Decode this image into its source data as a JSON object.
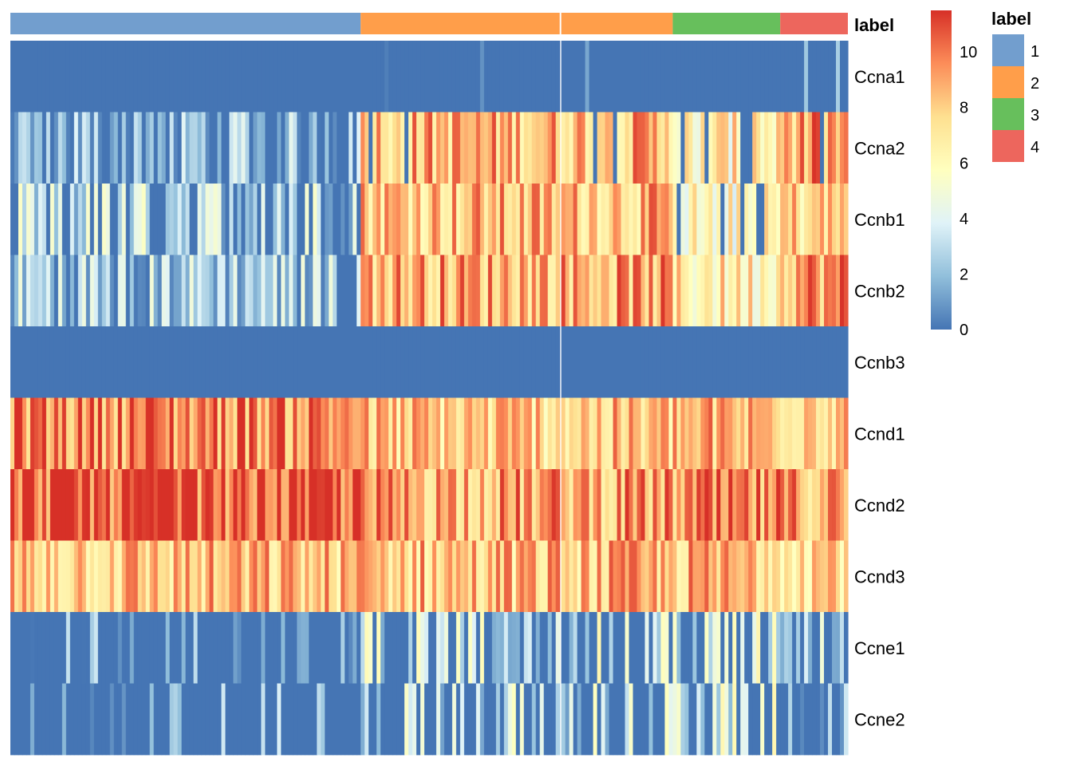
{
  "chart_data": {
    "type": "heatmap",
    "title": "",
    "rows": [
      "Ccna1",
      "Ccna2",
      "Ccnb1",
      "Ccnb2",
      "Ccnb3",
      "Ccnd1",
      "Ccnd2",
      "Ccnd3",
      "Ccne1",
      "Ccne2"
    ],
    "n_columns": 210,
    "column_split_after": 138,
    "column_annotation": {
      "name": "label",
      "groups": [
        {
          "label": "1",
          "count": 88,
          "color": "#729ECE"
        },
        {
          "label": "2",
          "count": 78,
          "color": "#FF9E4A"
        },
        {
          "label": "3",
          "count": 27,
          "color": "#67BF5C"
        },
        {
          "label": "4",
          "count": 17,
          "color": "#ED665D"
        }
      ]
    },
    "colorbar": {
      "ticks": [
        0,
        2,
        4,
        6,
        8,
        10
      ],
      "range": [
        0,
        11.5
      ],
      "colors": [
        "#4575B4",
        "#91BFDB",
        "#E0F3F8",
        "#FFFFBF",
        "#FEE090",
        "#FC8D59",
        "#D73027"
      ]
    },
    "row_profiles": {
      "Ccna1": {
        "group_means": [
          0.0,
          0.3,
          0.2,
          0.1
        ],
        "sparsity": [
          1.0,
          0.95,
          0.85,
          0.9
        ]
      },
      "Ccna2": {
        "group_means": [
          1.8,
          8.6,
          6.5,
          9.0
        ],
        "sparsity": [
          0.2,
          0.05,
          0.2,
          0.05
        ]
      },
      "Ccnb1": {
        "group_means": [
          3.2,
          8.4,
          5.8,
          7.8
        ],
        "sparsity": [
          0.35,
          0.0,
          0.15,
          0.0
        ]
      },
      "Ccnb2": {
        "group_means": [
          2.6,
          8.9,
          6.8,
          9.4
        ],
        "sparsity": [
          0.15,
          0.0,
          0.08,
          0.0
        ]
      },
      "Ccnb3": {
        "group_means": [
          0.0,
          0.0,
          0.0,
          0.0
        ],
        "sparsity": [
          1.0,
          1.0,
          1.0,
          1.0
        ]
      },
      "Ccnd1": {
        "group_means": [
          9.8,
          8.0,
          8.4,
          8.6
        ],
        "sparsity": [
          0.0,
          0.0,
          0.0,
          0.0
        ]
      },
      "Ccnd2": {
        "group_means": [
          10.6,
          9.0,
          9.2,
          9.0
        ],
        "sparsity": [
          0.0,
          0.0,
          0.0,
          0.0
        ]
      },
      "Ccnd3": {
        "group_means": [
          8.2,
          8.3,
          8.4,
          8.2
        ],
        "sparsity": [
          0.0,
          0.0,
          0.0,
          0.0
        ]
      },
      "Ccne1": {
        "group_means": [
          1.3,
          3.8,
          4.0,
          3.2
        ],
        "sparsity": [
          0.75,
          0.45,
          0.45,
          0.55
        ]
      },
      "Ccne2": {
        "group_means": [
          1.2,
          3.4,
          3.8,
          3.0
        ],
        "sparsity": [
          0.8,
          0.55,
          0.5,
          0.6
        ]
      }
    },
    "legend": {
      "title": "label",
      "entries": [
        "1",
        "2",
        "3",
        "4"
      ],
      "position": "right"
    },
    "xlabel": "",
    "ylabel": ""
  }
}
